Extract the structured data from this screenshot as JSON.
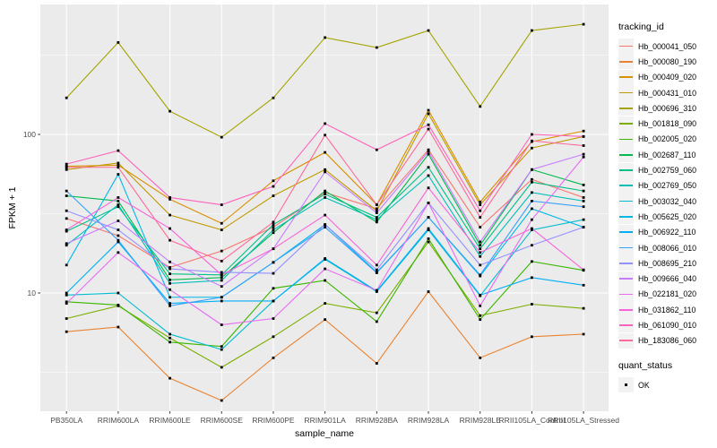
{
  "style": {
    "background": "#FFFFFF",
    "panel_bg": "#EBEBEB",
    "grid_color": "#FFFFFF",
    "tick_color": "#333333",
    "axis_text_color": "#4D4D4D",
    "text_color": "#000000",
    "legend_key_bg": "#F2F2F2",
    "point_color": "#000000"
  },
  "chart_data": {
    "type": "line",
    "title": "",
    "xlabel": "sample_name",
    "ylabel": "FPKM + 1",
    "y_scale": "log10",
    "ylim": [
      1.8,
      660
    ],
    "grid": {
      "major_y": [
        10,
        100
      ],
      "minor_y": [
        3.162,
        31.62,
        316.2
      ]
    },
    "y_ticks": [
      {
        "label": "100",
        "value": 100
      },
      {
        "label": "10",
        "value": 10
      }
    ],
    "legend": {
      "title": "tracking_id",
      "position": "right"
    },
    "quant_legend": {
      "title": "quant_status",
      "items": [
        "OK"
      ],
      "marker": "black-square"
    },
    "marker": {
      "shape": "square",
      "color": "#000000",
      "size": 2.8
    },
    "categories": [
      "PB350LA",
      "RRIM600LA",
      "RRIM600LE",
      "RRIM600SE",
      "RRIM600PE",
      "RRIM901LA",
      "RRIM928BA",
      "RRIM928LA",
      "RRIM928LE",
      "RRII105LA_Control",
      "RRII105LA_Stressed"
    ],
    "series": [
      {
        "name": "Hb_000041_050",
        "color": "#F8766D",
        "values": [
          29.5,
          23,
          14.5,
          18.4,
          26,
          43,
          34,
          80,
          26,
          52,
          40
        ]
      },
      {
        "name": "Hb_000080_190",
        "color": "#EA8331",
        "values": [
          5.7,
          6.1,
          2.9,
          2.1,
          3.9,
          6.8,
          3.6,
          10.2,
          3.9,
          5.3,
          5.5
        ]
      },
      {
        "name": "Hb_000409_020",
        "color": "#D89000",
        "values": [
          63,
          64,
          39,
          27.5,
          51,
          77,
          36,
          142,
          37.5,
          90,
          105
        ]
      },
      {
        "name": "Hb_000431_010",
        "color": "#C09B00",
        "values": [
          60,
          66,
          31,
          25,
          41,
          60,
          33,
          135,
          36,
          82,
          97
        ]
      },
      {
        "name": "Hb_000696_310",
        "color": "#A3A500",
        "values": [
          170,
          380,
          140,
          96,
          170,
          408,
          353,
          452,
          150,
          452,
          495
        ]
      },
      {
        "name": "Hb_001818_090",
        "color": "#7CAE00",
        "values": [
          6.9,
          8.3,
          5.2,
          3.4,
          5.3,
          8.6,
          7.5,
          21,
          7.2,
          8.5,
          8.0
        ]
      },
      {
        "name": "Hb_002005_020",
        "color": "#39B600",
        "values": [
          8.8,
          8.4,
          4.9,
          4.6,
          10.7,
          12,
          6.6,
          22,
          6.8,
          15.8,
          13.9
        ]
      },
      {
        "name": "Hb_002687_110",
        "color": "#00BB4E",
        "values": [
          41,
          38,
          12.1,
          12.5,
          24,
          44,
          28,
          75,
          20,
          60,
          48
        ]
      },
      {
        "name": "Hb_002759_060",
        "color": "#00C087",
        "values": [
          24.5,
          35,
          13.2,
          13,
          27,
          42,
          30,
          62,
          19,
          50,
          44
        ]
      },
      {
        "name": "Hb_002769_050",
        "color": "#00C0B8",
        "values": [
          20,
          36,
          11.5,
          12,
          25,
          40,
          29,
          55,
          17,
          43,
          38
        ]
      },
      {
        "name": "Hb_003032_040",
        "color": "#00BDD0",
        "values": [
          9.7,
          10,
          5.5,
          4.4,
          8.9,
          16.3,
          10.2,
          25,
          9.6,
          25,
          29
        ]
      },
      {
        "name": "Hb_005625_020",
        "color": "#00B8E7",
        "values": [
          15,
          56,
          9.4,
          9.4,
          15.6,
          27,
          13.5,
          30,
          12.8,
          34,
          26
        ]
      },
      {
        "name": "Hb_006922_110",
        "color": "#00AFF8",
        "values": [
          10,
          21,
          8.6,
          8.9,
          8.9,
          16.5,
          10.3,
          25.5,
          9.7,
          12.5,
          11.2
        ]
      },
      {
        "name": "Hb_008066_010",
        "color": "#35A2FF",
        "values": [
          44,
          21.5,
          8.3,
          9.4,
          15.6,
          26,
          13.4,
          30,
          13,
          38,
          35
        ]
      },
      {
        "name": "Hb_008695_210",
        "color": "#9590FF",
        "values": [
          33,
          25,
          14.2,
          13.5,
          13.3,
          27,
          14,
          37,
          15,
          20,
          26
        ]
      },
      {
        "name": "Hb_009666_040",
        "color": "#C77CFF",
        "values": [
          20.5,
          28.5,
          15.7,
          11,
          19,
          58,
          32,
          78,
          21,
          60,
          75
        ]
      },
      {
        "name": "Hb_022181_020",
        "color": "#E76BF3",
        "values": [
          8.6,
          18,
          10.5,
          6.3,
          6.9,
          14.2,
          10.4,
          37,
          8.3,
          29,
          72
        ]
      },
      {
        "name": "Hb_031862_110",
        "color": "#FA62DB",
        "values": [
          25,
          40,
          25.5,
          13,
          19,
          31,
          15,
          46,
          18,
          25.5,
          14
        ]
      },
      {
        "name": "Hb_061090_010",
        "color": "#FF62BC",
        "values": [
          65,
          79,
          40,
          36,
          47,
          117,
          80,
          115,
          33,
          100,
          97
        ]
      },
      {
        "name": "Hb_183086_060",
        "color": "#FF6A98",
        "values": [
          62,
          62,
          21.5,
          15.9,
          28,
          99,
          36,
          108,
          30,
          91,
          85
        ]
      }
    ]
  }
}
